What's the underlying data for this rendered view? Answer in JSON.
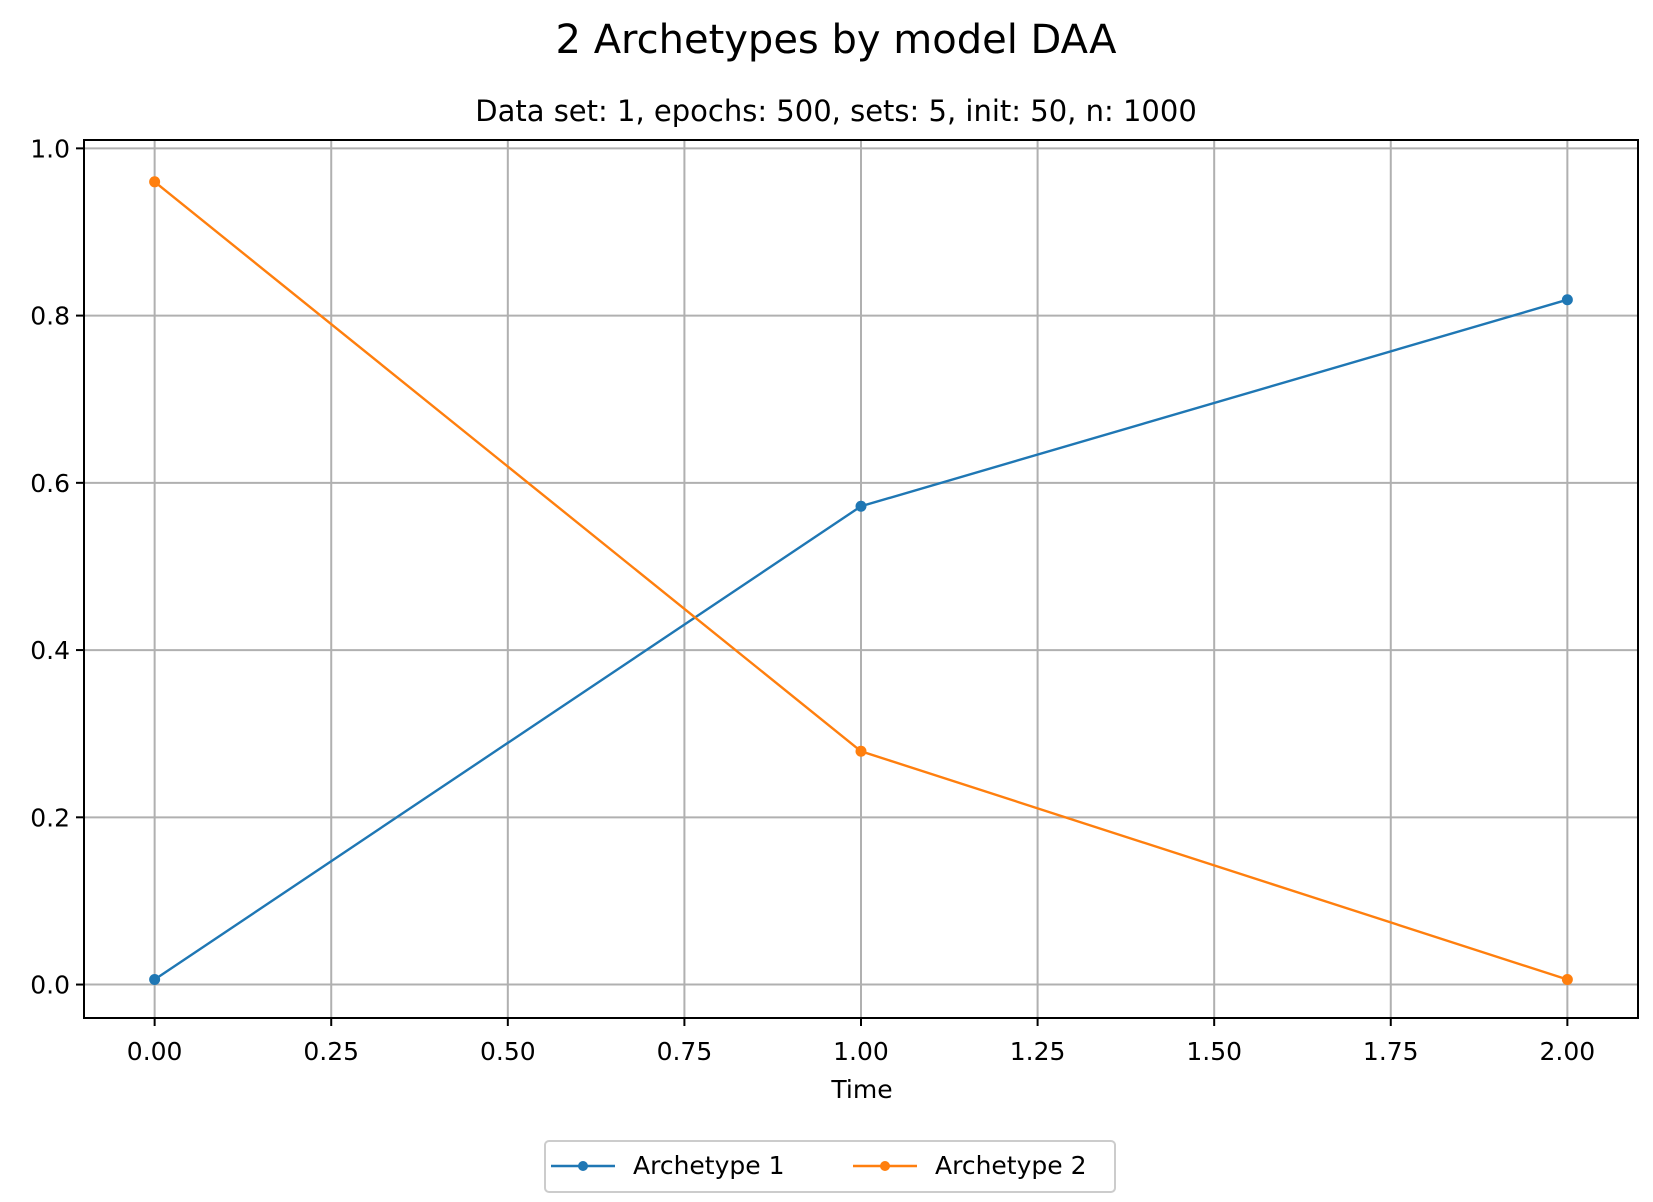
{
  "chart_data": {
    "type": "line",
    "title": "2 Archetypes by model DAA",
    "subtitle": "Data set: 1, epochs: 500, sets: 5, init: 50, n: 1000",
    "xlabel": "Time",
    "ylabel": "",
    "x": [
      0,
      1,
      2
    ],
    "xlim": [
      -0.1,
      2.1
    ],
    "ylim": [
      -0.04,
      1.01
    ],
    "xticks": [
      0,
      0.25,
      0.5,
      0.75,
      1,
      1.25,
      1.5,
      1.75,
      2
    ],
    "xtick_labels": [
      "0.00",
      "0.25",
      "0.50",
      "0.75",
      "1.00",
      "1.25",
      "1.50",
      "1.75",
      "2.00"
    ],
    "yticks": [
      0,
      0.2,
      0.4,
      0.6,
      0.8,
      1.0
    ],
    "ytick_labels": [
      "0.0",
      "0.2",
      "0.4",
      "0.6",
      "0.8",
      "1.0"
    ],
    "grid": true,
    "legend_position": "bottom-center",
    "series": [
      {
        "name": "Archetype 1",
        "color": "#1f77b4",
        "values": [
          0.006,
          0.572,
          0.819
        ]
      },
      {
        "name": "Archetype 2",
        "color": "#ff7f0e",
        "values": [
          0.96,
          0.279,
          0.006
        ]
      }
    ]
  }
}
